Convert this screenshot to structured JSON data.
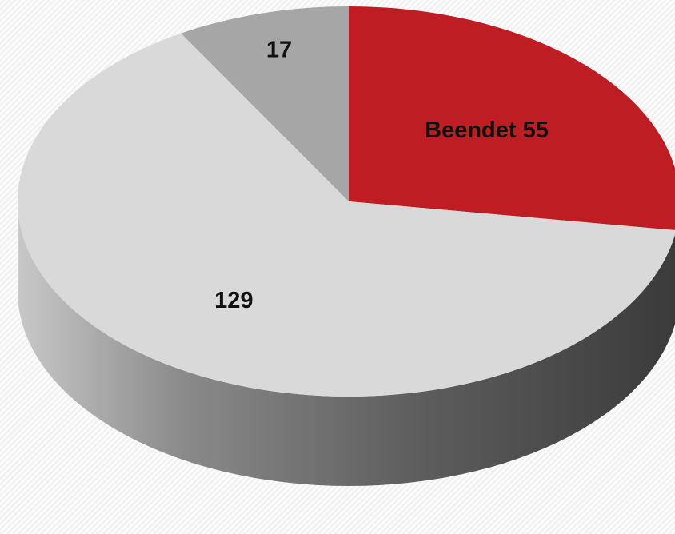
{
  "chart_data": {
    "type": "pie",
    "values": [
      55,
      129,
      17
    ],
    "value_labels": [
      "Beendet 55",
      "129",
      "17"
    ],
    "colors": [
      "#be1e23",
      "#d9d9d9",
      "#a6a6a6"
    ]
  }
}
